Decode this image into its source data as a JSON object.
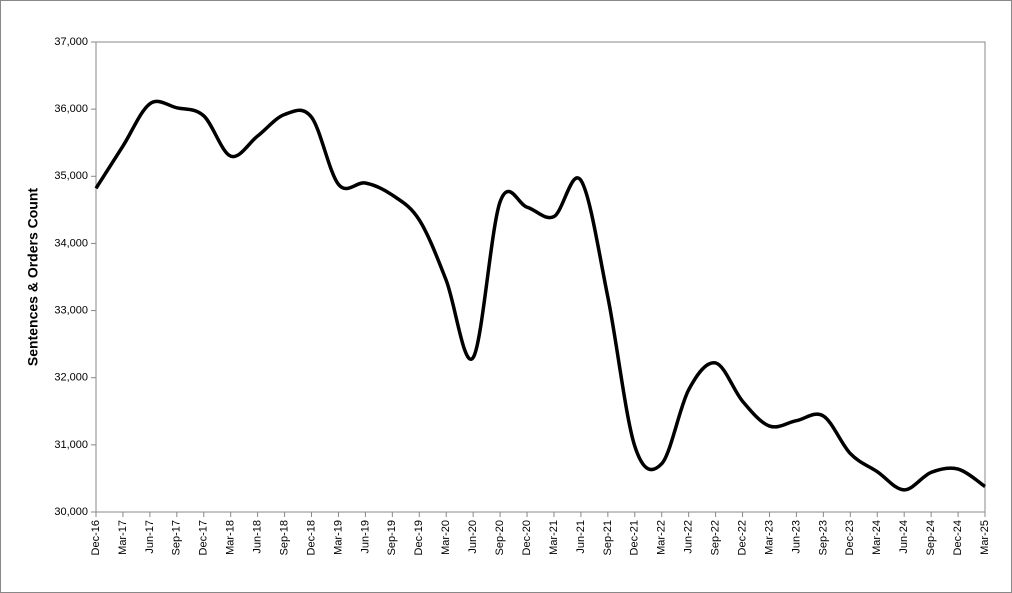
{
  "chart_data": {
    "type": "line",
    "y_label": "Sentences & Orders Count",
    "categories": [
      "Dec-16",
      "Mar-17",
      "Jun-17",
      "Sep-17",
      "Dec-17",
      "Mar-18",
      "Jun-18",
      "Sep-18",
      "Dec-18",
      "Mar-19",
      "Jun-19",
      "Sep-19",
      "Dec-19",
      "Mar-20",
      "Jun-20",
      "Sep-20",
      "Dec-20",
      "Mar-21",
      "Jun-21",
      "Sep-21",
      "Dec-21",
      "Mar-22",
      "Jun-22",
      "Sep-22",
      "Dec-22",
      "Mar-23",
      "Jun-23",
      "Sep-23",
      "Dec-23",
      "Mar-24",
      "Jun-24",
      "Sep-24",
      "Dec-24",
      "Mar-25"
    ],
    "series": [
      {
        "color": "#000000",
        "values": [
          34820,
          35450,
          36080,
          36020,
          35900,
          35300,
          35600,
          35920,
          35880,
          34880,
          34900,
          34720,
          34350,
          33450,
          32300,
          34620,
          34540,
          34400,
          34940,
          33200,
          30980,
          30720,
          31820,
          32220,
          31650,
          31280,
          31360,
          31430,
          30870,
          30600,
          30330,
          30590,
          30640,
          30380
        ]
      }
    ],
    "ylim": [
      30000,
      37000
    ],
    "yticks": [
      {
        "value": 30000,
        "label": "30,000"
      },
      {
        "value": 31000,
        "label": "31,000"
      },
      {
        "value": 32000,
        "label": "32,000"
      },
      {
        "value": 33000,
        "label": "33,000"
      },
      {
        "value": 34000,
        "label": "34,000"
      },
      {
        "value": 35000,
        "label": "35,000"
      },
      {
        "value": 36000,
        "label": "36,000"
      },
      {
        "value": 37000,
        "label": "37,000"
      }
    ],
    "grid": false
  }
}
